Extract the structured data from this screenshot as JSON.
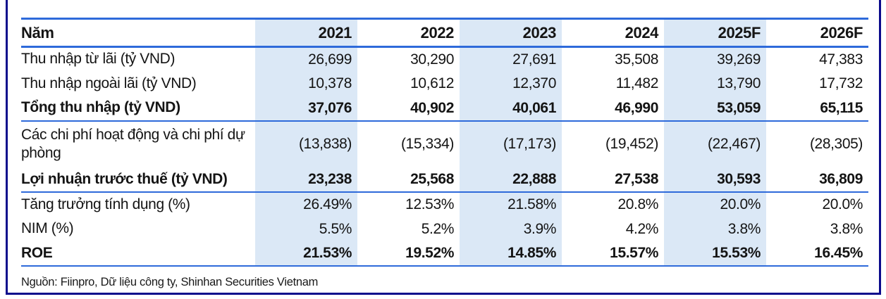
{
  "colors": {
    "band": "#dbe8f6",
    "rule": "#2e6ada",
    "frame": "#0b0b8c"
  },
  "table": {
    "header": [
      "Năm",
      "2021",
      "2022",
      "2023",
      "2024",
      "2025F",
      "2026F"
    ],
    "banded_value_columns": [
      0,
      2,
      4
    ],
    "rows": [
      {
        "label": "Thu nhập từ lãi (tỷ VND)",
        "values": [
          "26,699",
          "30,290",
          "27,691",
          "35,508",
          "39,269",
          "47,383"
        ],
        "bold": false,
        "rule_below": false,
        "wrap": false
      },
      {
        "label": "Thu nhập ngoài lãi (tỷ VND)",
        "values": [
          "10,378",
          "10,612",
          "12,370",
          "11,482",
          "13,790",
          "17,732"
        ],
        "bold": false,
        "rule_below": false,
        "wrap": false
      },
      {
        "label": "Tổng thu nhập (tỷ VND)",
        "values": [
          "37,076",
          "40,902",
          "40,061",
          "46,990",
          "53,059",
          "65,115"
        ],
        "bold": true,
        "rule_below": true,
        "wrap": false
      },
      {
        "label": "Các chi phí hoạt động và chi phí dự phòng",
        "values": [
          "(13,838)",
          "(15,334)",
          "(17,173)",
          "(19,452)",
          "(22,467)",
          "(28,305)"
        ],
        "bold": false,
        "rule_below": false,
        "wrap": true
      },
      {
        "label": "Lợi nhuận trước thuế (tỷ VND)",
        "values": [
          "23,238",
          "25,568",
          "22,888",
          "27,538",
          "30,593",
          "36,809"
        ],
        "bold": true,
        "rule_below": true,
        "wrap": false
      },
      {
        "label": "Tăng trưởng tính dụng (%)",
        "values": [
          "26.49%",
          "12.53%",
          "21.58%",
          "20.8%",
          "20.0%",
          "20.0%"
        ],
        "bold": false,
        "rule_below": false,
        "wrap": false
      },
      {
        "label": "NIM (%)",
        "values": [
          "5.5%",
          "5.2%",
          "3.9%",
          "4.2%",
          "3.8%",
          "3.8%"
        ],
        "bold": false,
        "rule_below": false,
        "wrap": false
      },
      {
        "label": "ROE",
        "values": [
          "21.53%",
          "19.52%",
          "14.85%",
          "15.57%",
          "15.53%",
          "16.45%"
        ],
        "bold": true,
        "rule_below": true,
        "wrap": false
      }
    ],
    "source": "Nguồn: Fiinpro, Dữ liệu công ty, Shinhan Securities Vietnam"
  }
}
